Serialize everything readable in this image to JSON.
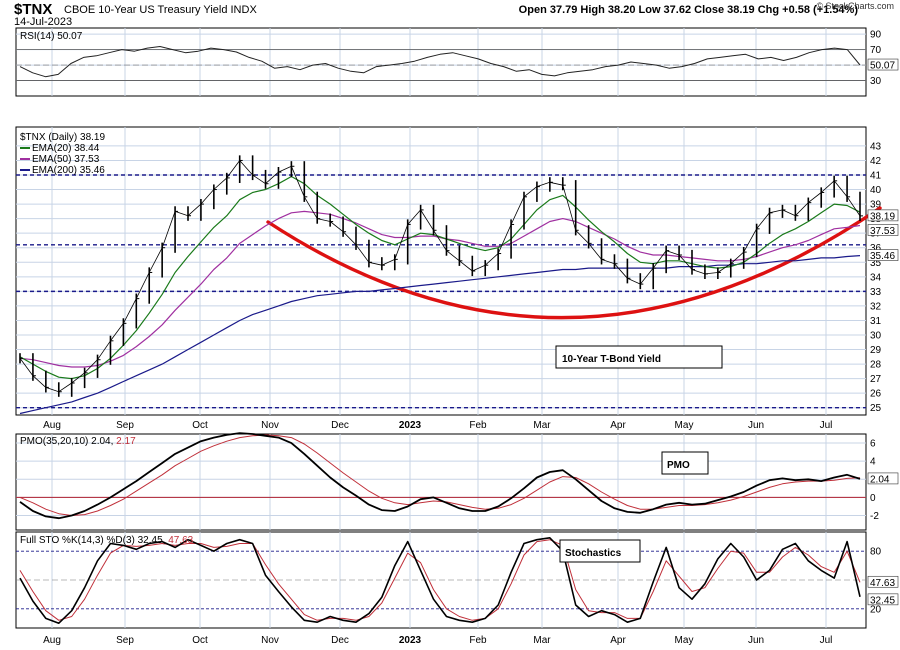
{
  "header": {
    "symbol": "$TNX",
    "description": "CBOE 10-Year US Treasury Yield  INDX",
    "date": "14-Jul-2023",
    "ohlc": "Open 37.79   High 38.20   Low 37.62   Close 38.19   Chg +0.58 (+1.54%)",
    "credit": "© StockCharts.com"
  },
  "colors": {
    "price": "#000000",
    "ema20": "#1a7a1a",
    "ema50": "#a030a0",
    "ema200": "#1a1a8a",
    "arc": "#dd1111",
    "grid": "#c8d4e6",
    "signal": "#c0303a",
    "dash": "#1a1a8a"
  },
  "chart_data": [
    {
      "type": "line",
      "title": "RSI(14) 50.07",
      "ylim": [
        10,
        98
      ],
      "yticks": [
        90,
        70,
        50,
        30
      ],
      "guides": [
        70,
        30
      ],
      "last_label": "50.07",
      "series": [
        {
          "name": "RSI(14)",
          "values": [
            48,
            40,
            35,
            38,
            52,
            60,
            62,
            66,
            70,
            68,
            72,
            74,
            70,
            66,
            68,
            72,
            70,
            67,
            60,
            55,
            46,
            48,
            44,
            50,
            52,
            46,
            42,
            40,
            48,
            50,
            52,
            55,
            60,
            64,
            66,
            62,
            58,
            52,
            48,
            42,
            44,
            38,
            36,
            40,
            42,
            44,
            48,
            50,
            54,
            52,
            50,
            46,
            48,
            52,
            58,
            60,
            62,
            64,
            58,
            60,
            56,
            60,
            66,
            70,
            72,
            70,
            50.07
          ]
        }
      ]
    },
    {
      "type": "line",
      "title": "$TNX (Daily) 38.19",
      "xticks": [
        "Aug",
        "Sep",
        "Oct",
        "Nov",
        "Dec",
        "2023",
        "Feb",
        "Mar",
        "Apr",
        "May",
        "Jun",
        "Jul"
      ],
      "ylim": [
        24.5,
        44.3
      ],
      "yticks": [
        43,
        42,
        41,
        40,
        39,
        38,
        37,
        36,
        35,
        34,
        33,
        32,
        31,
        30,
        29,
        28,
        27,
        26,
        25
      ],
      "last_labels": [
        "38.19",
        "37.53",
        "35.46"
      ],
      "series": [
        {
          "name": "$TNX",
          "values": [
            28.4,
            27.2,
            26.4,
            26.1,
            26.7,
            27.4,
            28.3,
            29.6,
            30.8,
            32.5,
            34.3,
            36.0,
            38.5,
            38.2,
            39.0,
            40.0,
            40.8,
            42.0,
            41.0,
            40.4,
            41.2,
            41.6,
            39.5,
            38.0,
            37.8,
            37.1,
            36.2,
            35.0,
            34.8,
            35.2,
            37.6,
            38.6,
            37.2,
            35.8,
            35.1,
            34.4,
            34.8,
            35.6,
            37.6,
            39.5,
            40.2,
            40.5,
            40.3,
            37.2,
            36.3,
            35.2,
            34.9,
            33.9,
            33.5,
            34.6,
            35.8,
            35.5,
            34.5,
            34.2,
            34.3,
            34.9,
            35.7,
            37.3,
            38.4,
            38.6,
            38.2,
            39.1,
            39.8,
            40.6,
            39.5,
            38.19
          ]
        },
        {
          "name": "EMA(20) 38.44",
          "values": [
            28.5,
            28.0,
            27.5,
            27.1,
            27.0,
            27.2,
            27.7,
            28.4,
            29.3,
            30.3,
            31.5,
            32.8,
            34.3,
            35.4,
            36.4,
            37.4,
            38.2,
            39.3,
            39.8,
            40.0,
            40.4,
            40.9,
            40.4,
            39.6,
            39.0,
            38.3,
            37.6,
            37.0,
            36.5,
            36.2,
            36.6,
            37.0,
            36.9,
            36.6,
            36.3,
            36.0,
            35.8,
            36.0,
            36.6,
            37.6,
            38.6,
            39.3,
            39.6,
            38.8,
            37.9,
            37.1,
            36.4,
            35.6,
            35.0,
            34.9,
            35.1,
            35.1,
            34.9,
            34.7,
            34.6,
            34.7,
            35.0,
            35.6,
            36.3,
            36.9,
            37.3,
            37.8,
            38.4,
            39.0,
            38.9,
            38.44
          ]
        },
        {
          "name": "EMA(50) 37.53",
          "values": [
            28.4,
            28.3,
            28.1,
            27.9,
            27.8,
            27.8,
            27.9,
            28.2,
            28.6,
            29.2,
            29.9,
            30.7,
            31.7,
            32.6,
            33.5,
            34.5,
            35.3,
            36.3,
            36.9,
            37.5,
            38.0,
            38.4,
            38.5,
            38.4,
            38.3,
            38.0,
            37.7,
            37.3,
            36.9,
            36.7,
            36.7,
            36.8,
            36.8,
            36.6,
            36.5,
            36.3,
            36.1,
            36.1,
            36.3,
            36.8,
            37.3,
            37.8,
            38.0,
            37.8,
            37.4,
            37.0,
            36.6,
            36.1,
            35.7,
            35.5,
            35.5,
            35.4,
            35.3,
            35.2,
            35.1,
            35.1,
            35.2,
            35.4,
            35.7,
            36.0,
            36.2,
            36.5,
            36.9,
            37.3,
            37.4,
            37.53
          ]
        },
        {
          "name": "EMA(200) 35.46",
          "values": [
            24.6,
            24.8,
            25.0,
            25.2,
            25.4,
            25.7,
            26.0,
            26.4,
            26.8,
            27.2,
            27.6,
            28.0,
            28.5,
            29.0,
            29.5,
            30.0,
            30.5,
            31.0,
            31.4,
            31.7,
            32.0,
            32.3,
            32.5,
            32.7,
            32.8,
            32.9,
            33.0,
            33.0,
            33.1,
            33.2,
            33.3,
            33.4,
            33.5,
            33.6,
            33.7,
            33.8,
            33.9,
            34.0,
            34.1,
            34.2,
            34.3,
            34.4,
            34.5,
            34.5,
            34.6,
            34.6,
            34.6,
            34.6,
            34.6,
            34.6,
            34.6,
            34.7,
            34.7,
            34.7,
            34.8,
            34.8,
            34.9,
            34.9,
            35.0,
            35.1,
            35.1,
            35.2,
            35.3,
            35.3,
            35.4,
            35.46
          ]
        }
      ],
      "horizontal_lines": [
        41.0,
        36.2,
        33.0,
        25.0
      ],
      "annotation": "10-Year T-Bond Yield"
    },
    {
      "type": "line",
      "title_main": "PMO(35,20,10) 2.04, ",
      "title_signal": "2.17",
      "ylim": [
        -3.6,
        7.0
      ],
      "yticks": [
        6,
        4,
        2,
        0,
        -2
      ],
      "zero": 0,
      "last_label": "2.04",
      "annotation": "PMO",
      "series": [
        {
          "name": "PMO",
          "values": [
            -0.5,
            -1.5,
            -2.1,
            -2.3,
            -2.0,
            -1.5,
            -0.8,
            0.0,
            0.9,
            1.8,
            2.8,
            3.8,
            4.8,
            5.5,
            6.2,
            6.6,
            6.9,
            7.1,
            7.0,
            6.8,
            6.6,
            6.0,
            4.8,
            3.5,
            2.2,
            1.1,
            0.2,
            -0.8,
            -1.4,
            -1.5,
            -1.0,
            -0.2,
            0.0,
            -0.6,
            -1.2,
            -1.5,
            -1.5,
            -1.0,
            -0.1,
            1.0,
            2.2,
            2.8,
            3.0,
            2.0,
            0.8,
            -0.4,
            -1.2,
            -1.6,
            -1.7,
            -1.3,
            -0.8,
            -0.6,
            -0.8,
            -0.7,
            -0.3,
            0.1,
            0.6,
            1.3,
            1.9,
            2.1,
            1.9,
            2.0,
            1.8,
            2.2,
            2.5,
            2.04
          ]
        },
        {
          "name": "Signal",
          "values": [
            0.0,
            -0.6,
            -1.3,
            -1.8,
            -2.0,
            -1.9,
            -1.5,
            -0.9,
            -0.2,
            0.7,
            1.6,
            2.5,
            3.5,
            4.3,
            5.1,
            5.7,
            6.2,
            6.6,
            6.8,
            6.9,
            6.8,
            6.6,
            5.9,
            4.9,
            3.8,
            2.7,
            1.7,
            0.7,
            -0.1,
            -0.6,
            -0.8,
            -0.6,
            -0.4,
            -0.5,
            -0.8,
            -1.1,
            -1.3,
            -1.2,
            -0.8,
            -0.1,
            0.8,
            1.7,
            2.3,
            2.2,
            1.5,
            0.6,
            -0.2,
            -0.9,
            -1.3,
            -1.3,
            -1.1,
            -0.9,
            -0.9,
            -0.8,
            -0.6,
            -0.3,
            0.1,
            0.6,
            1.1,
            1.5,
            1.7,
            1.8,
            1.8,
            1.9,
            2.1,
            2.17
          ]
        }
      ]
    },
    {
      "type": "line",
      "title_main": "Full STO %K(14,3) %D(3) 32.45, ",
      "title_signal": "47.63",
      "xticks": [
        "Aug",
        "Sep",
        "Oct",
        "Nov",
        "Dec",
        "2023",
        "Feb",
        "Mar",
        "Apr",
        "May",
        "Jun",
        "Jul"
      ],
      "ylim": [
        0,
        100
      ],
      "yticks": [
        80,
        20
      ],
      "guides": [
        80,
        20
      ],
      "midline": 50,
      "last_labels": [
        "47.63",
        "32.45"
      ],
      "annotation": "Stochastics",
      "series": [
        {
          "name": "%K",
          "values": [
            52,
            28,
            10,
            5,
            18,
            42,
            70,
            88,
            86,
            82,
            88,
            90,
            84,
            92,
            86,
            80,
            88,
            92,
            88,
            55,
            38,
            22,
            8,
            6,
            12,
            8,
            6,
            15,
            32,
            65,
            90,
            60,
            30,
            12,
            8,
            6,
            10,
            24,
            58,
            88,
            92,
            94,
            80,
            24,
            12,
            18,
            14,
            6,
            10,
            48,
            84,
            42,
            30,
            46,
            72,
            88,
            74,
            50,
            60,
            82,
            88,
            70,
            60,
            52,
            90,
            32.45
          ]
        },
        {
          "name": "%D",
          "values": [
            60,
            38,
            18,
            8,
            12,
            30,
            55,
            78,
            86,
            85,
            86,
            88,
            86,
            88,
            88,
            84,
            85,
            88,
            88,
            66,
            46,
            30,
            14,
            8,
            10,
            10,
            8,
            12,
            26,
            52,
            78,
            68,
            40,
            20,
            12,
            8,
            10,
            20,
            46,
            76,
            90,
            92,
            86,
            40,
            18,
            16,
            16,
            10,
            10,
            38,
            70,
            54,
            38,
            42,
            62,
            80,
            78,
            58,
            58,
            74,
            84,
            76,
            64,
            58,
            80,
            47.63
          ]
        }
      ]
    }
  ]
}
